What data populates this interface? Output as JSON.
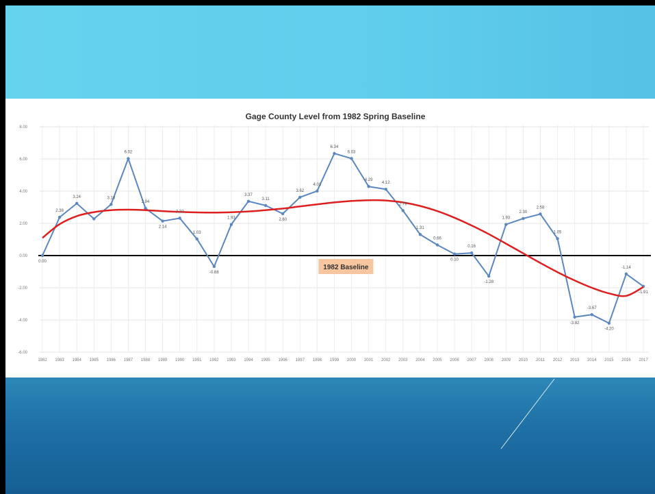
{
  "chart_data": {
    "type": "line",
    "title": "Gage County Level from 1982 Spring Baseline",
    "xlabel": "",
    "ylabel": "",
    "ylim": [
      -6,
      8
    ],
    "yticks": [
      "8.00",
      "6.00",
      "4.00",
      "2.00",
      "0.00",
      "-2.00",
      "-4.00",
      "-6.00"
    ],
    "categories": [
      "1982",
      "1983",
      "1984",
      "1985",
      "1986",
      "1987",
      "1988",
      "1989",
      "1990",
      "1991",
      "1992",
      "1993",
      "1994",
      "1995",
      "1996",
      "1997",
      "1998",
      "1999",
      "2000",
      "2001",
      "2002",
      "2003",
      "2004",
      "2005",
      "2006",
      "2007",
      "2008",
      "2009",
      "2010",
      "2011",
      "2012",
      "2013",
      "2014",
      "2015",
      "2016",
      "2017"
    ],
    "series": [
      {
        "values": [
          0.0,
          2.38,
          3.24,
          2.28,
          3.18,
          6.02,
          2.94,
          2.14,
          2.32,
          1.03,
          -0.68,
          1.93,
          3.37,
          3.11,
          2.6,
          3.62,
          4.01,
          6.34,
          6.03,
          4.29,
          4.12,
          2.79,
          1.31,
          0.66,
          0.1,
          0.16,
          -1.28,
          1.93,
          2.3,
          2.58,
          1.05,
          -3.82,
          -3.67,
          -4.2,
          -1.14,
          -1.91
        ],
        "labels": [
          "0.00",
          "2.38",
          "3.24",
          "",
          "3.18",
          "6.02",
          "2.94",
          "2.14",
          "2.32",
          "1.03",
          "-0.68",
          "1.93",
          "3.37",
          "3.11",
          "2.60",
          "3.62",
          "4.01",
          "6.34",
          "6.03",
          "4.29",
          "4.12",
          "2.79",
          "1.31",
          "0.66",
          "0.10",
          "0.16",
          "-1.28",
          "1.93",
          "2.30",
          "2.58",
          "1.05",
          "-3.82",
          "-3.67",
          "-4.20",
          "-1.14",
          "-1.91"
        ],
        "color": "#5a87c0"
      }
    ],
    "trendline": {
      "type": "polynomial",
      "color": "#dd1f1f",
      "values": [
        1.1,
        1.95,
        2.45,
        2.7,
        2.82,
        2.85,
        2.82,
        2.76,
        2.71,
        2.68,
        2.67,
        2.69,
        2.74,
        2.82,
        2.92,
        3.05,
        3.18,
        3.3,
        3.39,
        3.44,
        3.42,
        3.3,
        3.08,
        2.76,
        2.35,
        1.87,
        1.33,
        0.74,
        0.14,
        -0.46,
        -1.03,
        -1.55,
        -2.0,
        -2.35,
        -2.5,
        -1.95
      ]
    },
    "baseline": {
      "value": 0,
      "label": "1982 Baseline",
      "label_color": "#f7c59f"
    },
    "grid": true,
    "legend": "none"
  }
}
